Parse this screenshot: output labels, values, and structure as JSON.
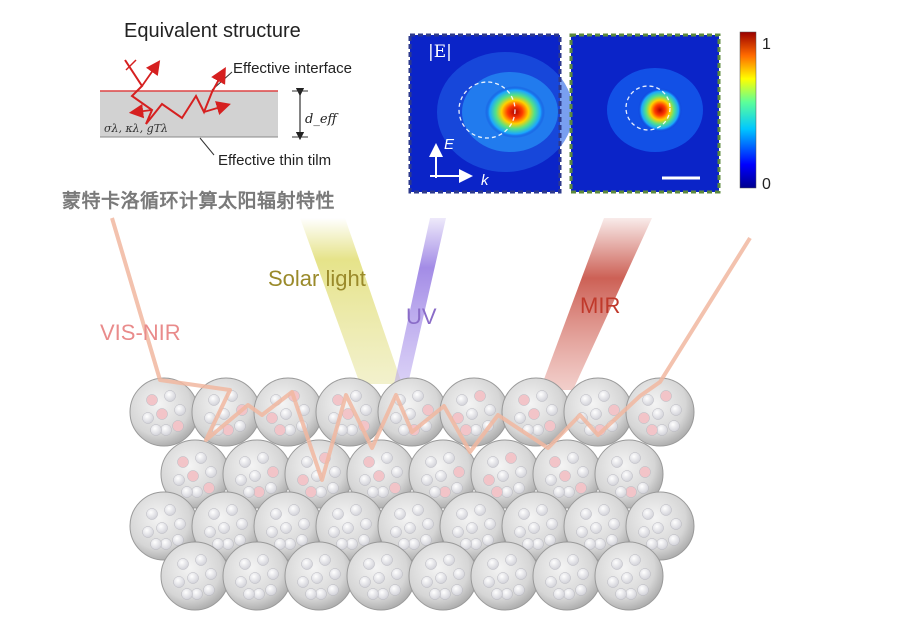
{
  "equivalent_structure": {
    "title": "Equivalent structure",
    "effective_interface": "Effective interface",
    "effective_thin_film": "Effective thin tilm",
    "thickness_symbol": "d_eff",
    "material_params": "σλ, κλ, gTλ"
  },
  "chinese_caption": "蒙特卡洛循环计算太阳辐射特性",
  "field_maps": {
    "field_label": "|E|",
    "polarization_label": "E",
    "wavevector_label": "k",
    "colorbar": {
      "max_label": "1",
      "min_label": "0"
    },
    "panel_border_colors": [
      "#2d3a8c",
      "#5c8a3c"
    ]
  },
  "beams": {
    "solar": "Solar light",
    "uv": "UV",
    "mir": "MIR",
    "vis_nir": "VIS-NIR"
  },
  "colors": {
    "solar": "#d8d44a",
    "uv": "#8c6fe0",
    "mir": "#c0392b",
    "vis_nir": "#f1b7a0"
  }
}
